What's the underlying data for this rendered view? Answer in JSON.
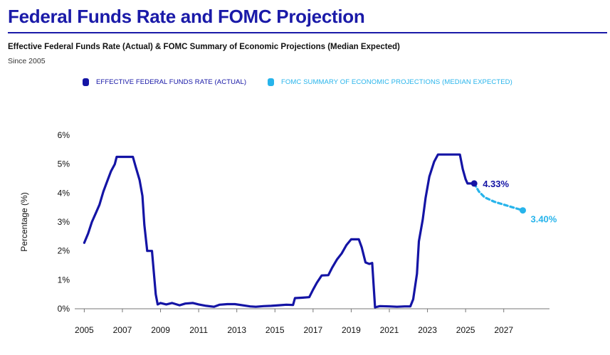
{
  "header": {
    "title": "Federal Funds Rate and FOMC Projection",
    "subtitle": "Effective Federal Funds Rate (Actual) & FOMC Summary of Economic Projections (Median Expected)",
    "since": "Since 2005"
  },
  "colors": {
    "title": "#1a1aa8",
    "actual": "#1414a5",
    "projection": "#27b4eb",
    "axis": "#777777"
  },
  "chart_data": {
    "type": "line",
    "title": "Federal Funds Rate and FOMC Projection",
    "ylabel": "Percentage (%)",
    "xlabel": "",
    "xlim": [
      2004.5,
      2029.4
    ],
    "ylim": [
      0,
      6
    ],
    "x_ticks": [
      2005,
      2007,
      2009,
      2011,
      2013,
      2015,
      2017,
      2019,
      2021,
      2023,
      2025,
      2027
    ],
    "x_tick_labels": [
      "2005",
      "2007",
      "2009",
      "2011",
      "2013",
      "2015",
      "2017",
      "2019",
      "2021",
      "2023",
      "2025",
      "2027"
    ],
    "y_ticks": [
      0,
      1,
      2,
      3,
      4,
      5,
      6
    ],
    "y_tick_labels": [
      "0%",
      "1%",
      "2%",
      "3%",
      "4%",
      "5%",
      "6%"
    ],
    "legend_position": "top-center",
    "grid": false,
    "series": [
      {
        "name": "EFFECTIVE FEDERAL FUNDS RATE (ACTUAL)",
        "style": "solid",
        "points": [
          [
            2005.0,
            2.28
          ],
          [
            2005.2,
            2.6
          ],
          [
            2005.4,
            3.0
          ],
          [
            2005.6,
            3.3
          ],
          [
            2005.8,
            3.6
          ],
          [
            2006.0,
            4.05
          ],
          [
            2006.2,
            4.4
          ],
          [
            2006.4,
            4.75
          ],
          [
            2006.6,
            5.0
          ],
          [
            2006.7,
            5.25
          ],
          [
            2007.0,
            5.25
          ],
          [
            2007.3,
            5.25
          ],
          [
            2007.55,
            5.25
          ],
          [
            2007.7,
            4.9
          ],
          [
            2007.9,
            4.45
          ],
          [
            2008.05,
            3.9
          ],
          [
            2008.15,
            2.9
          ],
          [
            2008.3,
            2.0
          ],
          [
            2008.55,
            2.0
          ],
          [
            2008.75,
            0.5
          ],
          [
            2008.85,
            0.15
          ],
          [
            2009.0,
            0.2
          ],
          [
            2009.3,
            0.15
          ],
          [
            2009.6,
            0.2
          ],
          [
            2010.0,
            0.12
          ],
          [
            2010.3,
            0.18
          ],
          [
            2010.7,
            0.2
          ],
          [
            2011.0,
            0.15
          ],
          [
            2011.4,
            0.1
          ],
          [
            2011.8,
            0.07
          ],
          [
            2012.1,
            0.14
          ],
          [
            2012.5,
            0.16
          ],
          [
            2012.9,
            0.16
          ],
          [
            2013.3,
            0.12
          ],
          [
            2013.7,
            0.08
          ],
          [
            2014.0,
            0.07
          ],
          [
            2014.4,
            0.09
          ],
          [
            2014.8,
            0.1
          ],
          [
            2015.2,
            0.12
          ],
          [
            2015.6,
            0.14
          ],
          [
            2015.95,
            0.13
          ],
          [
            2016.05,
            0.37
          ],
          [
            2016.4,
            0.38
          ],
          [
            2016.8,
            0.4
          ],
          [
            2017.0,
            0.66
          ],
          [
            2017.2,
            0.9
          ],
          [
            2017.45,
            1.15
          ],
          [
            2017.8,
            1.16
          ],
          [
            2018.0,
            1.42
          ],
          [
            2018.25,
            1.7
          ],
          [
            2018.5,
            1.91
          ],
          [
            2018.75,
            2.2
          ],
          [
            2019.0,
            2.4
          ],
          [
            2019.4,
            2.4
          ],
          [
            2019.55,
            2.13
          ],
          [
            2019.75,
            1.6
          ],
          [
            2019.95,
            1.55
          ],
          [
            2020.1,
            1.58
          ],
          [
            2020.25,
            0.05
          ],
          [
            2020.5,
            0.09
          ],
          [
            2021.0,
            0.08
          ],
          [
            2021.4,
            0.07
          ],
          [
            2021.8,
            0.08
          ],
          [
            2022.1,
            0.08
          ],
          [
            2022.25,
            0.33
          ],
          [
            2022.45,
            1.21
          ],
          [
            2022.55,
            2.33
          ],
          [
            2022.75,
            3.08
          ],
          [
            2022.9,
            3.83
          ],
          [
            2023.1,
            4.57
          ],
          [
            2023.35,
            5.08
          ],
          [
            2023.55,
            5.33
          ],
          [
            2024.0,
            5.33
          ],
          [
            2024.4,
            5.33
          ],
          [
            2024.7,
            5.33
          ],
          [
            2024.85,
            4.83
          ],
          [
            2025.0,
            4.48
          ],
          [
            2025.1,
            4.33
          ],
          [
            2025.45,
            4.33
          ]
        ]
      },
      {
        "name": "FOMC SUMMARY OF ECONOMIC PROJECTIONS (MEDIAN EXPECTED)",
        "style": "dashed",
        "points": [
          [
            2025.45,
            4.33
          ],
          [
            2025.7,
            4.05
          ],
          [
            2026.0,
            3.85
          ],
          [
            2026.5,
            3.7
          ],
          [
            2027.0,
            3.6
          ],
          [
            2027.5,
            3.5
          ],
          [
            2028.0,
            3.4
          ]
        ]
      }
    ],
    "annotations": [
      {
        "x": 2025.45,
        "y": 4.33,
        "text": "4.33%",
        "series": 0
      },
      {
        "x": 2028.0,
        "y": 3.4,
        "text": "3.40%",
        "series": 1
      }
    ]
  }
}
